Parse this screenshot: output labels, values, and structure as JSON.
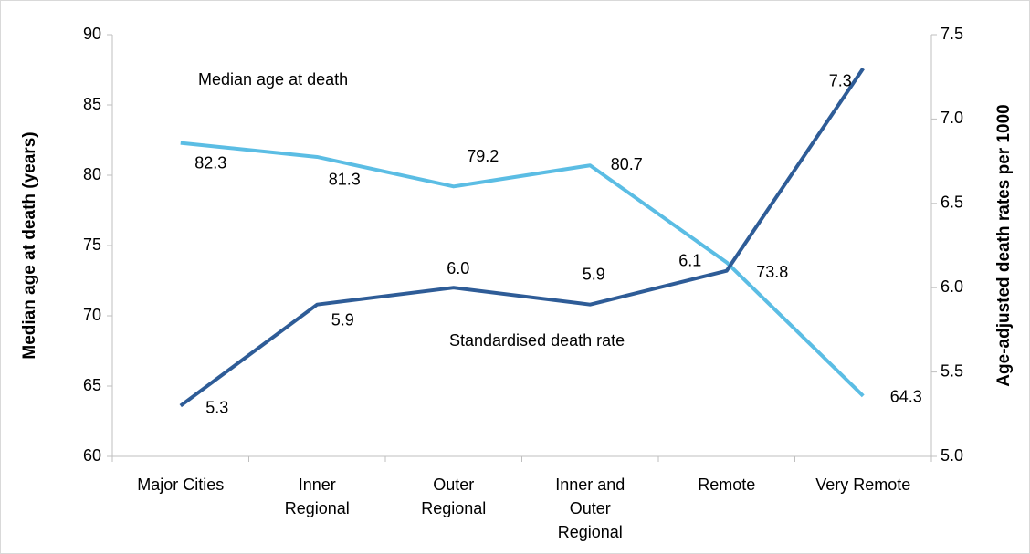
{
  "chart_data": {
    "type": "line",
    "categories": [
      "Major  Cities",
      "Inner\nRegional",
      "Outer\nRegional",
      "Inner and\nOuter\nRegional",
      "Remote",
      "Very Remote"
    ],
    "series": [
      {
        "name": "Median age at death",
        "color": "#5bbde4",
        "values": [
          82.3,
          81.3,
          79.2,
          80.7,
          73.8,
          64.3
        ]
      },
      {
        "name": "Standardised death rate",
        "color": "#2e5c97",
        "axis": "y2",
        "values": [
          5.3,
          5.9,
          6,
          5.9,
          6.1,
          7.3
        ],
        "value_labels": [
          "5.3",
          "5.9",
          "6.0",
          "5.9",
          "6.1",
          "7.3"
        ]
      }
    ],
    "ylabel": "Median age at death (years)",
    "y2label": "Age-adjusted death rates per 1000",
    "ylim": [
      60,
      90
    ],
    "yticks": [
      60,
      65,
      70,
      75,
      80,
      85,
      90
    ],
    "y2lim": [
      5,
      7.5
    ],
    "y2ticks": [
      {
        "value": 5,
        "label": "5.0"
      },
      5.5,
      {
        "value": 6,
        "label": "6.0"
      },
      6.5,
      {
        "value": 7,
        "label": "7.0"
      },
      7.5
    ]
  }
}
